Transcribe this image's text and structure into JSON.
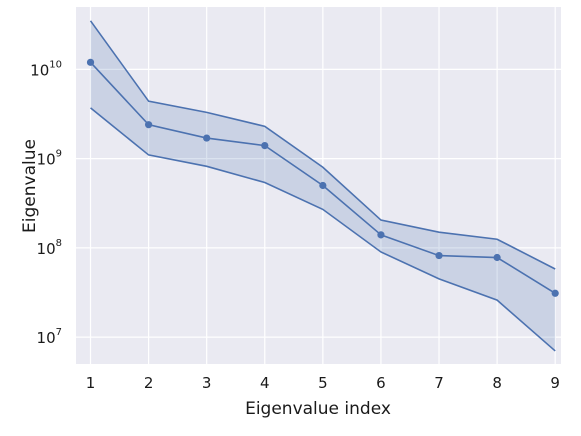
{
  "chart_data": {
    "type": "line",
    "xlabel": "Eigenvalue index",
    "ylabel": "Eigenvalue",
    "yscale": "log",
    "grid": true,
    "x": [
      1,
      2,
      3,
      4,
      5,
      6,
      7,
      8,
      9
    ],
    "xticks": [
      "1",
      "2",
      "3",
      "4",
      "5",
      "6",
      "7",
      "8",
      "9"
    ],
    "yticks": [
      {
        "base": "10",
        "exp": "7",
        "value": 10000000
      },
      {
        "base": "10",
        "exp": "8",
        "value": 100000000
      },
      {
        "base": "10",
        "exp": "9",
        "value": 1000000000
      },
      {
        "base": "10",
        "exp": "10",
        "value": 10000000000
      }
    ],
    "ylim": [
      5000000,
      50000000000
    ],
    "xlim": [
      0.75,
      9.1
    ],
    "series": [
      {
        "values": [
          12000000000,
          2400000000,
          1700000000,
          1400000000,
          500000000,
          140000000,
          82000000,
          78000000,
          31000000
        ],
        "lower": [
          3700000000,
          1100000000,
          820000000,
          540000000,
          270000000,
          90000000,
          45000000,
          26000000,
          7000000
        ],
        "upper": [
          35000000000,
          4400000000,
          3300000000,
          2300000000,
          800000000,
          205000000,
          150000000,
          125000000,
          58000000
        ]
      }
    ],
    "colors": {
      "background": "#eaeaf2",
      "grid": "#ffffff",
      "line": "#4c72b0",
      "band": "#4c72b0"
    }
  }
}
